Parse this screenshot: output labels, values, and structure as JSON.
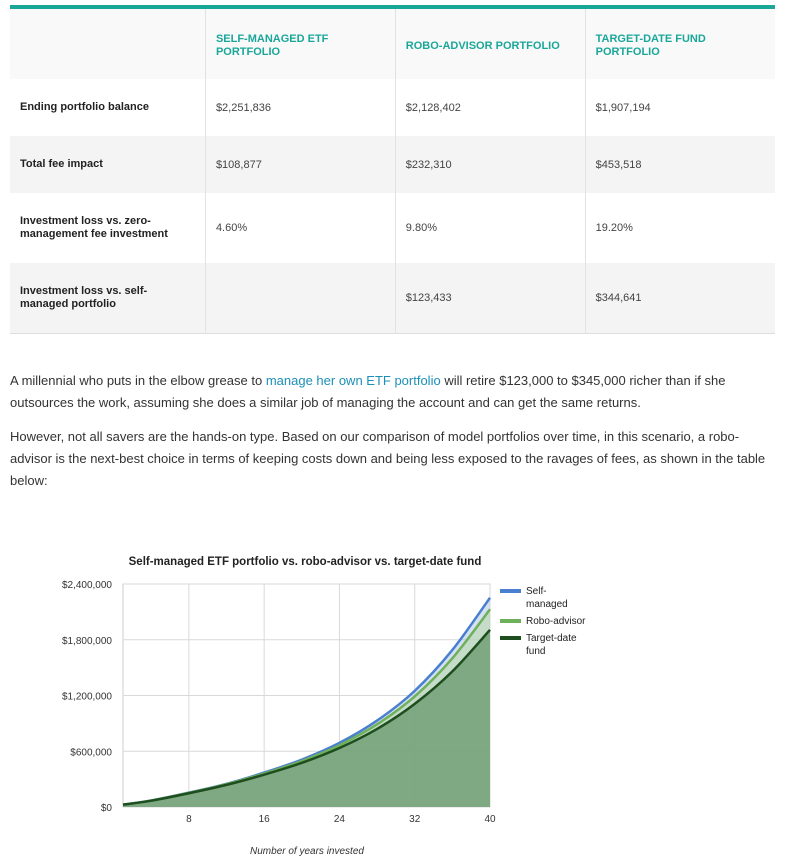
{
  "table": {
    "headers": [
      "",
      "SELF-MANAGED ETF PORTFOLIO",
      "ROBO-ADVISOR PORTFOLIO",
      "TARGET-DATE FUND PORTFOLIO"
    ],
    "rows": [
      {
        "label": "Ending portfolio balance",
        "values": [
          "$2,251,836",
          "$2,128,402",
          "$1,907,194"
        ]
      },
      {
        "label": "Total fee impact",
        "values": [
          "$108,877",
          "$232,310",
          "$453,518"
        ]
      },
      {
        "label": "Investment loss vs. zero-management fee investment",
        "values": [
          "4.60%",
          "9.80%",
          "19.20%"
        ]
      },
      {
        "label": "Investment loss vs. self-managed portfolio",
        "values": [
          "",
          "$123,433",
          "$344,641"
        ]
      }
    ]
  },
  "paragraphs": {
    "p1_before": "A millennial who puts in the elbow grease to ",
    "p1_link": "manage her own ETF portfolio",
    "p1_after": " will retire $123,000 to $345,000 richer than if she outsources the work, assuming she does a similar job of managing the account and can get the same returns.",
    "p2": "However, not all savers are the hands-on type. Based on our comparison of model portfolios over time, in this scenario, a robo-advisor is the next-best choice in terms of keeping costs down and being less exposed to the ravages of fees, as shown in the table below:"
  },
  "chart_data": {
    "type": "area",
    "title": "Self-managed ETF portfolio vs. robo-advisor vs. target-date fund",
    "xlabel": "Number of years invested",
    "ylabel": "",
    "x_ticks": [
      "8",
      "16",
      "24",
      "32",
      "40"
    ],
    "y_ticks": [
      "$0",
      "$600,000",
      "$1,200,000",
      "$1,800,000",
      "$2,400,000"
    ],
    "xlim": [
      1,
      40
    ],
    "ylim": [
      0,
      2400000
    ],
    "grid": true,
    "legend_position": "right",
    "x": [
      1,
      4,
      8,
      12,
      16,
      20,
      24,
      28,
      32,
      36,
      40
    ],
    "series": [
      {
        "name": "Self-managed",
        "color": "#4a7fd0",
        "values": [
          25000,
          70000,
          155000,
          250000,
          370000,
          510000,
          690000,
          930000,
          1250000,
          1690000,
          2251836
        ]
      },
      {
        "name": "Robo-advisor",
        "color": "#6fb05a",
        "values": [
          25000,
          69000,
          152000,
          245000,
          360000,
          495000,
          665000,
          890000,
          1190000,
          1600000,
          2128402
        ]
      },
      {
        "name": "Target-date fund",
        "color": "#1e4d1e",
        "values": [
          25000,
          68000,
          148000,
          238000,
          348000,
          475000,
          635000,
          840000,
          1110000,
          1460000,
          1907194
        ]
      }
    ]
  }
}
